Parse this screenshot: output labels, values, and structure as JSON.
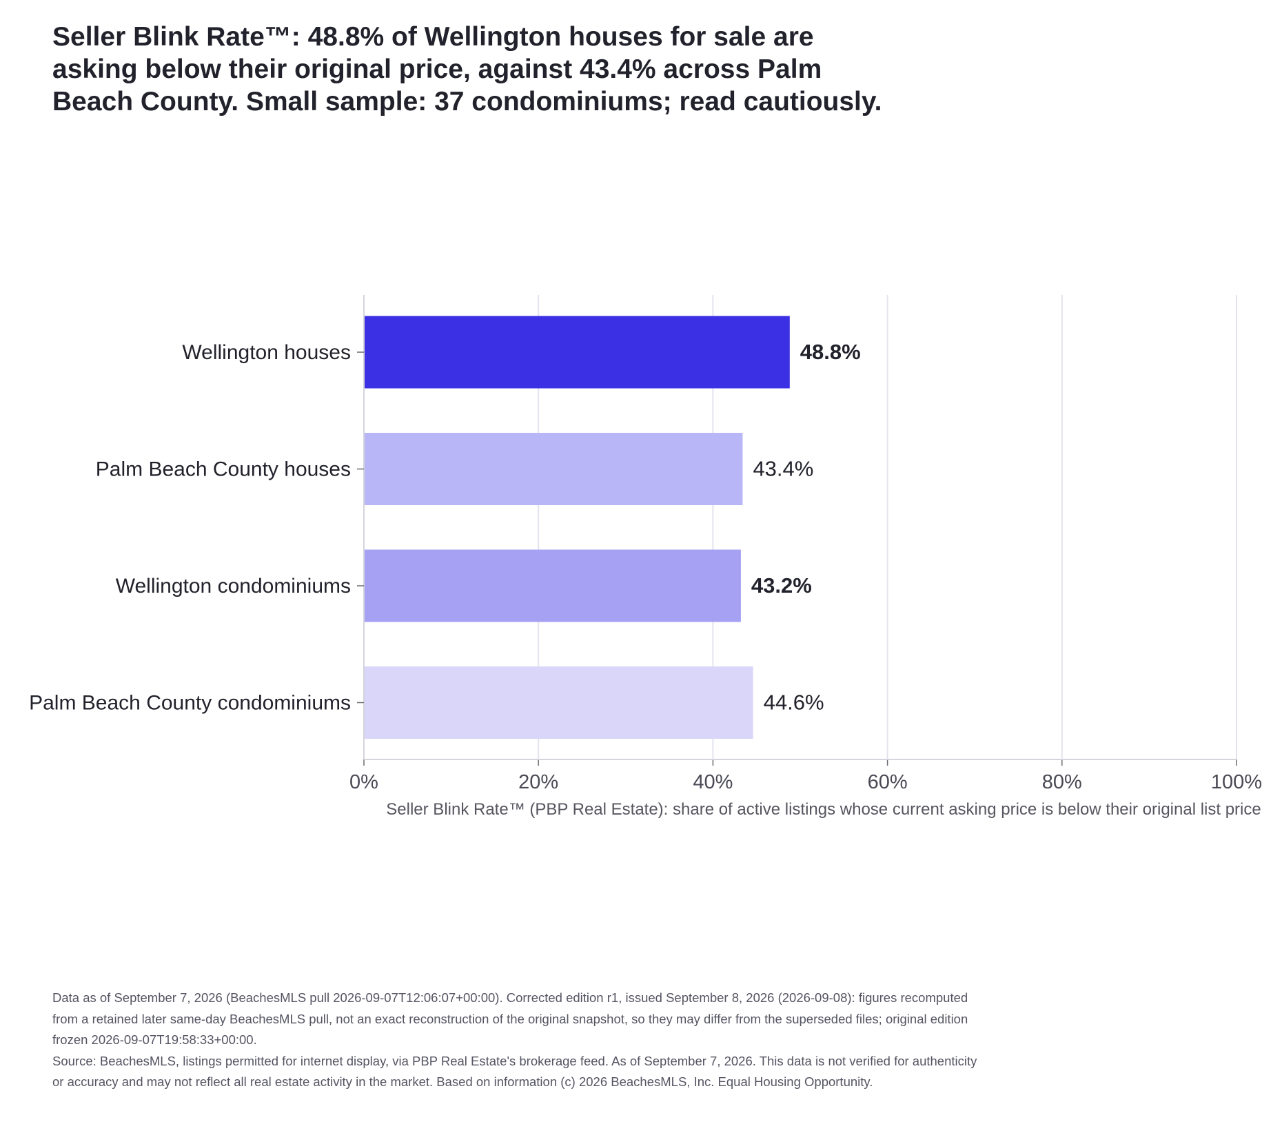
{
  "title": "Seller Blink Rate™: 48.8% of Wellington houses for sale are asking below their original price, against 43.4% across Palm Beach County. Small sample: 37 condominiums; read cautiously.",
  "footnotes": {
    "edition": "Data as of September 7, 2026 (BeachesMLS pull 2026-09-07T12:06:07+00:00). Corrected edition r1, issued September 8, 2026 (2026-09-08): figures recomputed from a retained later same-day BeachesMLS pull, not an exact reconstruction of the original snapshot, so they may differ from the superseded files; original edition frozen 2026-09-07T19:58:33+00:00.",
    "source": "Source: BeachesMLS, listings permitted for internet display, via PBP Real Estate's brokerage feed. As of September 7, 2026. This data is not verified for authenticity or accuracy and may not reflect all real estate activity in the market. Based on information (c) 2026 BeachesMLS, Inc. Equal Housing Opportunity."
  },
  "chart_data": {
    "type": "bar",
    "orientation": "horizontal",
    "categories": [
      "Wellington houses",
      "Palm Beach County houses",
      "Wellington condominiums",
      "Palm Beach County condominiums"
    ],
    "values": [
      48.8,
      43.4,
      43.2,
      44.6
    ],
    "value_labels": [
      "48.8%",
      "43.4%",
      "43.2%",
      "44.6%"
    ],
    "label_bold": [
      true,
      false,
      true,
      false
    ],
    "colors": [
      "#3b30e3",
      "#b9b6f7",
      "#a7a1f4",
      "#d9d6fa"
    ],
    "xlabel": "Seller Blink Rate™ (PBP Real Estate): share of active listings whose current asking price is below their original list price",
    "xlim": [
      0,
      100
    ],
    "xticks": [
      0,
      20,
      40,
      60,
      80,
      100
    ],
    "xtick_labels": [
      "0%",
      "20%",
      "40%",
      "60%",
      "80%",
      "100%"
    ],
    "grid": true
  }
}
